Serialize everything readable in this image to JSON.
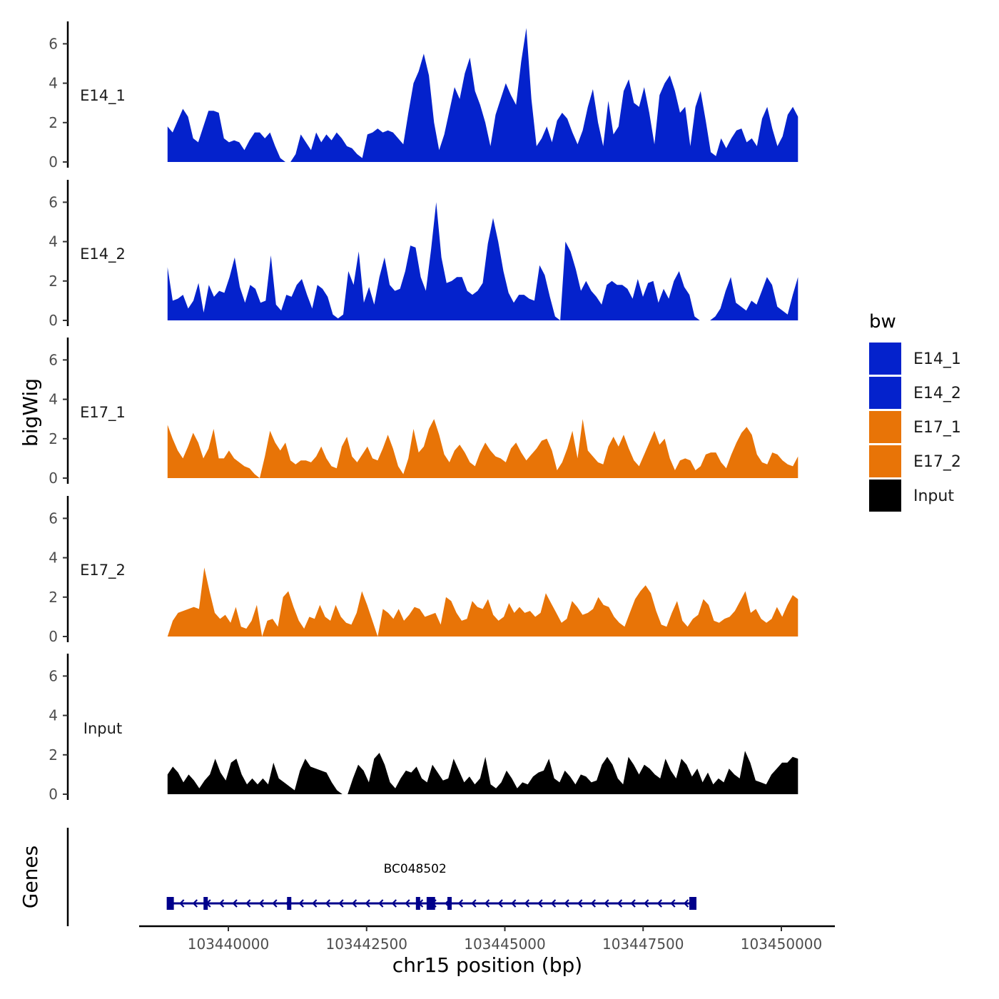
{
  "chart_data": {
    "type": "area",
    "ylabel": "bigWig",
    "xlabel": "chr15 position (bp)",
    "ylim": [
      0,
      7
    ],
    "yticks": [
      0,
      2,
      4,
      6
    ],
    "xlim": [
      103438000,
      103451000
    ],
    "xticks": [
      103440000,
      103442500,
      103445000,
      103447500,
      103450000
    ],
    "xtick_labels": [
      "103440000",
      "103442500",
      "103445000",
      "103447500",
      "103450000"
    ],
    "data_range": [
      103438900,
      103450300
    ],
    "legend": {
      "title": "bw",
      "position": "right",
      "entries": [
        {
          "label": "E14_1",
          "color": "#0422cc"
        },
        {
          "label": "E14_2",
          "color": "#0422cc"
        },
        {
          "label": "E17_1",
          "color": "#e87407"
        },
        {
          "label": "E17_2",
          "color": "#e87407"
        },
        {
          "label": "Input",
          "color": "#000000"
        }
      ]
    },
    "series": [
      {
        "name": "E14_1",
        "color": "#0422cc",
        "values": [
          1.8,
          1.5,
          2.1,
          2.7,
          2.3,
          1.2,
          1.0,
          1.8,
          2.6,
          2.6,
          2.5,
          1.2,
          1.0,
          1.1,
          1.0,
          0.6,
          1.1,
          1.5,
          1.5,
          1.2,
          1.5,
          0.8,
          0.2,
          0.0,
          0.0,
          0.4,
          1.4,
          1.0,
          0.6,
          1.5,
          1.0,
          1.4,
          1.1,
          1.5,
          1.2,
          0.8,
          0.7,
          0.4,
          0.2,
          1.4,
          1.5,
          1.7,
          1.5,
          1.6,
          1.5,
          1.2,
          0.9,
          2.5,
          4.0,
          4.6,
          5.5,
          4.4,
          2.0,
          0.6,
          1.4,
          2.6,
          3.8,
          3.2,
          4.5,
          5.3,
          3.6,
          2.9,
          2.0,
          0.8,
          2.4,
          3.2,
          4.0,
          3.4,
          2.9,
          5.1,
          6.8,
          3.2,
          0.8,
          1.2,
          1.8,
          1.0,
          2.1,
          2.5,
          2.2,
          1.5,
          0.9,
          1.6,
          2.8,
          3.7,
          2.0,
          0.8,
          3.1,
          1.4,
          1.8,
          3.6,
          4.2,
          3.0,
          2.8,
          3.8,
          2.5,
          0.9,
          3.4,
          4.0,
          4.4,
          3.6,
          2.5,
          2.8,
          0.8,
          2.8,
          3.6,
          2.1,
          0.5,
          0.3,
          1.2,
          0.7,
          1.2,
          1.6,
          1.7,
          1.0,
          1.2,
          0.8,
          2.2,
          2.8,
          1.7,
          0.8,
          1.3,
          2.4,
          2.8,
          2.3
        ]
      },
      {
        "name": "E14_2",
        "color": "#0422cc",
        "values": [
          2.7,
          1.0,
          1.1,
          1.3,
          0.6,
          1.0,
          1.9,
          0.4,
          1.8,
          1.2,
          1.5,
          1.4,
          2.2,
          3.2,
          1.7,
          0.9,
          1.8,
          1.6,
          0.9,
          1.0,
          3.3,
          0.8,
          0.5,
          1.3,
          1.2,
          1.8,
          2.1,
          1.3,
          0.6,
          1.8,
          1.6,
          1.2,
          0.3,
          0.1,
          0.3,
          2.5,
          1.8,
          3.5,
          0.9,
          1.7,
          0.8,
          2.2,
          3.2,
          1.8,
          1.5,
          1.6,
          2.5,
          3.8,
          3.7,
          2.2,
          1.5,
          3.6,
          6.0,
          3.2,
          1.9,
          2.0,
          2.2,
          2.2,
          1.5,
          1.3,
          1.5,
          1.9,
          3.9,
          5.2,
          4.0,
          2.5,
          1.4,
          0.9,
          1.3,
          1.3,
          1.1,
          1.0,
          2.8,
          2.3,
          1.2,
          0.2,
          0.0,
          4.0,
          3.5,
          2.6,
          1.5,
          2.0,
          1.5,
          1.2,
          0.8,
          1.8,
          2.0,
          1.8,
          1.8,
          1.6,
          1.1,
          2.1,
          1.2,
          1.9,
          2.0,
          0.9,
          1.6,
          1.1,
          2.0,
          2.5,
          1.7,
          1.3,
          0.2,
          0.0,
          0.0,
          0.0,
          0.2,
          0.6,
          1.5,
          2.2,
          0.9,
          0.7,
          0.5,
          1.0,
          0.8,
          1.5,
          2.2,
          1.8,
          0.7,
          0.5,
          0.3,
          1.3,
          2.2
        ]
      },
      {
        "name": "E17_1",
        "color": "#e87407",
        "values": [
          2.7,
          2.0,
          1.4,
          1.0,
          1.6,
          2.3,
          1.8,
          1.0,
          1.5,
          2.5,
          1.0,
          1.0,
          1.4,
          1.0,
          0.8,
          0.6,
          0.5,
          0.2,
          0.0,
          1.1,
          2.4,
          1.8,
          1.4,
          1.8,
          0.9,
          0.7,
          0.9,
          0.9,
          0.8,
          1.1,
          1.6,
          1.0,
          0.6,
          0.5,
          1.6,
          2.1,
          1.1,
          0.8,
          1.2,
          1.6,
          1.0,
          0.9,
          1.5,
          2.2,
          1.5,
          0.6,
          0.2,
          1.0,
          2.5,
          1.3,
          1.6,
          2.5,
          3.0,
          2.2,
          1.2,
          0.8,
          1.4,
          1.7,
          1.3,
          0.8,
          0.6,
          1.3,
          1.8,
          1.4,
          1.1,
          1.0,
          0.8,
          1.5,
          1.8,
          1.3,
          0.9,
          1.2,
          1.5,
          1.9,
          2.0,
          1.4,
          0.4,
          0.8,
          1.5,
          2.4,
          1.0,
          3.0,
          1.4,
          1.1,
          0.8,
          0.7,
          1.6,
          2.1,
          1.6,
          2.2,
          1.5,
          0.9,
          0.6,
          1.2,
          1.8,
          2.4,
          1.7,
          2.0,
          1.0,
          0.4,
          0.9,
          1.0,
          0.9,
          0.4,
          0.6,
          1.2,
          1.3,
          1.3,
          0.8,
          0.5,
          1.2,
          1.8,
          2.3,
          2.6,
          2.2,
          1.2,
          0.8,
          0.7,
          1.3,
          1.2,
          0.9,
          0.7,
          0.6,
          1.1
        ]
      },
      {
        "name": "E17_2",
        "color": "#e87407",
        "values": [
          0.0,
          0.8,
          1.2,
          1.3,
          1.4,
          1.5,
          1.4,
          3.5,
          2.3,
          1.2,
          0.9,
          1.1,
          0.7,
          1.5,
          0.5,
          0.4,
          0.8,
          1.6,
          0.0,
          0.8,
          0.9,
          0.5,
          2.0,
          2.3,
          1.5,
          0.8,
          0.4,
          1.0,
          0.9,
          1.6,
          1.0,
          0.8,
          1.6,
          1.0,
          0.7,
          0.6,
          1.2,
          2.3,
          1.6,
          0.8,
          0.0,
          1.4,
          1.2,
          0.9,
          1.4,
          0.8,
          1.1,
          1.5,
          1.4,
          1.0,
          1.1,
          1.2,
          0.6,
          2.0,
          1.8,
          1.2,
          0.8,
          0.9,
          1.8,
          1.5,
          1.4,
          1.9,
          1.1,
          0.8,
          1.0,
          1.7,
          1.2,
          1.5,
          1.2,
          1.3,
          1.0,
          1.2,
          2.2,
          1.7,
          1.2,
          0.7,
          0.9,
          1.8,
          1.5,
          1.1,
          1.2,
          1.4,
          2.0,
          1.6,
          1.5,
          1.0,
          0.7,
          0.5,
          1.2,
          1.9,
          2.3,
          2.6,
          2.2,
          1.3,
          0.6,
          0.5,
          1.2,
          1.8,
          0.8,
          0.5,
          0.9,
          1.1,
          1.9,
          1.6,
          0.8,
          0.7,
          0.9,
          1.0,
          1.3,
          1.8,
          2.3,
          1.2,
          1.4,
          0.9,
          0.7,
          0.9,
          1.5,
          1.0,
          1.6,
          2.1,
          1.9
        ]
      },
      {
        "name": "Input",
        "color": "#000000",
        "values": [
          1.0,
          1.4,
          1.1,
          0.6,
          1.0,
          0.7,
          0.3,
          0.7,
          1.0,
          1.8,
          1.1,
          0.7,
          1.6,
          1.8,
          1.0,
          0.5,
          0.8,
          0.5,
          0.8,
          0.5,
          1.6,
          0.8,
          0.6,
          0.4,
          0.2,
          1.2,
          1.8,
          1.4,
          1.3,
          1.2,
          1.1,
          0.6,
          0.2,
          0.0,
          0.0,
          0.8,
          1.5,
          1.2,
          0.6,
          1.8,
          2.1,
          1.5,
          0.6,
          0.3,
          0.8,
          1.2,
          1.1,
          1.4,
          0.8,
          0.6,
          1.5,
          1.1,
          0.7,
          0.8,
          1.8,
          1.2,
          0.6,
          0.9,
          0.5,
          0.8,
          1.9,
          0.5,
          0.3,
          0.6,
          1.2,
          0.8,
          0.3,
          0.6,
          0.5,
          0.9,
          1.1,
          1.2,
          1.8,
          0.8,
          0.6,
          1.2,
          0.9,
          0.5,
          1.0,
          0.9,
          0.6,
          0.7,
          1.5,
          1.9,
          1.5,
          0.8,
          0.5,
          1.9,
          1.5,
          1.0,
          1.5,
          1.3,
          1.0,
          0.8,
          1.8,
          1.2,
          0.8,
          1.8,
          1.5,
          0.9,
          1.3,
          0.6,
          1.1,
          0.5,
          0.8,
          0.6,
          1.3,
          1.0,
          0.8,
          2.2,
          1.6,
          0.7,
          0.6,
          0.5,
          1.0,
          1.3,
          1.6,
          1.6,
          1.9,
          1.8
        ]
      }
    ],
    "genes": {
      "track_label": "Genes",
      "name": "BC048502",
      "start": 103438950,
      "end": 103448450,
      "strand": "-",
      "exons": [
        103438950,
        103439590,
        103441100,
        103443430,
        103443650,
        103443700,
        103444000,
        103448400
      ]
    }
  }
}
